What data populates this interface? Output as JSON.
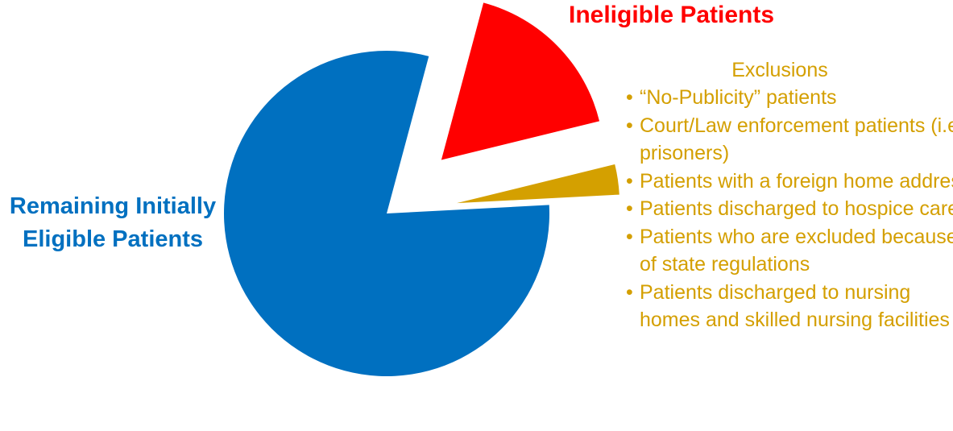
{
  "chart_data": {
    "type": "pie",
    "categories": [
      "Ineligible Patients",
      "Exclusions",
      "Remaining Initially Eligible Patients"
    ],
    "values": [
      17,
      3,
      80
    ],
    "colors": [
      "#ff0000",
      "#d4a000",
      "#0070c0"
    ],
    "annotations": [
      "“No-Publicity” patients",
      "Court/Law enforcement patients (i.e., prisoners)",
      "Patients with a foreign home address",
      "Patients discharged to hospice care",
      "Patients who are excluded because of state regulations",
      "Patients discharged to nursing homes and skilled nursing facilities"
    ]
  }
}
